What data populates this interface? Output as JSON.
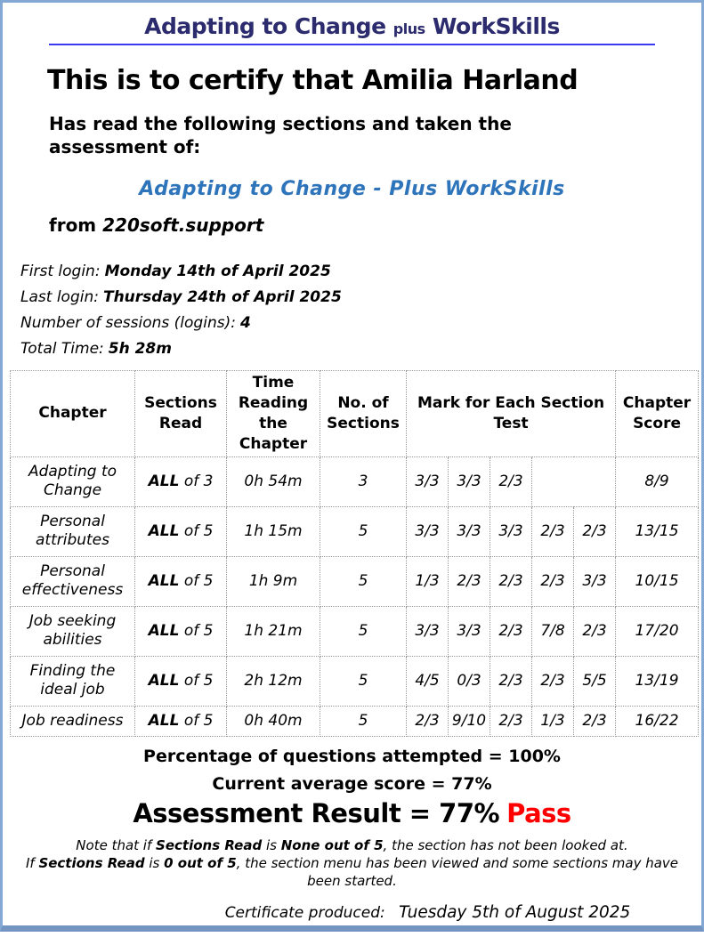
{
  "header": {
    "brand_main": "Adapting to Change",
    "brand_plus": "plus",
    "brand_suffix": "WorkSkills",
    "certify_line": "This is to certify that Amilia Harland",
    "has_read": "Has read the following sections and taken the assessment of:",
    "course_title": "Adapting to Change - Plus WorkSkills",
    "from_label": "from",
    "from_value": "220soft.support"
  },
  "login": {
    "items": [
      {
        "label": "First login:",
        "value": "Monday 14th of April 2025"
      },
      {
        "label": "Last login:",
        "value": "Thursday 24th of April 2025"
      },
      {
        "label": "Number of sessions (logins):",
        "value": "4"
      },
      {
        "label": "Total Time:",
        "value": "5h 28m"
      }
    ]
  },
  "table": {
    "headers": {
      "chapter": "Chapter",
      "sections_read": "Sections Read",
      "time_reading": "Time Reading the Chapter",
      "no_of_sections": "No. of Sections",
      "marks": "Mark for Each Section Test",
      "chapter_score": "Chapter Score"
    },
    "rows": [
      {
        "chapter": "Adapting to Change",
        "sections_bold": "ALL",
        "sections_rest": "of 3",
        "time": "0h 54m",
        "num": "3",
        "marks": [
          "3/3",
          "3/3",
          "2/3"
        ],
        "score": "8/9"
      },
      {
        "chapter": "Personal attributes",
        "sections_bold": "ALL",
        "sections_rest": "of 5",
        "time": "1h 15m",
        "num": "5",
        "marks": [
          "3/3",
          "3/3",
          "3/3",
          "2/3",
          "2/3"
        ],
        "score": "13/15"
      },
      {
        "chapter": "Personal effectiveness",
        "sections_bold": "ALL",
        "sections_rest": "of 5",
        "time": "1h 9m",
        "num": "5",
        "marks": [
          "1/3",
          "2/3",
          "2/3",
          "2/3",
          "3/3"
        ],
        "score": "10/15"
      },
      {
        "chapter": "Job seeking abilities",
        "sections_bold": "ALL",
        "sections_rest": "of 5",
        "time": "1h 21m",
        "num": "5",
        "marks": [
          "3/3",
          "3/3",
          "2/3",
          "7/8",
          "2/3"
        ],
        "score": "17/20"
      },
      {
        "chapter": "Finding the ideal job",
        "sections_bold": "ALL",
        "sections_rest": "of 5",
        "time": "2h 12m",
        "num": "5",
        "marks": [
          "4/5",
          "0/3",
          "2/3",
          "2/3",
          "5/5"
        ],
        "score": "13/19"
      },
      {
        "chapter": "Job readiness",
        "sections_bold": "ALL",
        "sections_rest": "of 5",
        "time": "0h 40m",
        "num": "5",
        "marks": [
          "2/3",
          "9/10",
          "2/3",
          "1/3",
          "2/3"
        ],
        "score": "16/22"
      }
    ]
  },
  "summary": {
    "attempted": "Percentage of questions attempted = 100%",
    "average": "Current average score = 77%",
    "result_text": "Assessment Result = 77%",
    "result_status": "Pass"
  },
  "notes": {
    "line1": [
      {
        "text": "Note that if ",
        "bold": false
      },
      {
        "text": "Sections Read",
        "bold": true
      },
      {
        "text": " is ",
        "bold": false
      },
      {
        "text": "None out of 5",
        "bold": true
      },
      {
        "text": ", the section has not been looked at.",
        "bold": false
      }
    ],
    "line2": [
      {
        "text": "If ",
        "bold": false
      },
      {
        "text": "Sections Read",
        "bold": true
      },
      {
        "text": " is ",
        "bold": false
      },
      {
        "text": "0 out of 5",
        "bold": true
      },
      {
        "text": ", the section menu has been viewed and some sections may have been started.",
        "bold": false
      }
    ]
  },
  "footer": {
    "produced_label": "Certificate produced:",
    "produced_value": "Tuesday 5th of August 2025"
  },
  "colors": {
    "brand_navy": "#2b2b6e",
    "divider_blue": "#3a3af0",
    "course_blue": "#2e74ba",
    "pass_red": "#ff0000",
    "page_border": "#83a8d3",
    "page_border_bottom": "#7495c2",
    "table_border": "#9a9a9a"
  }
}
